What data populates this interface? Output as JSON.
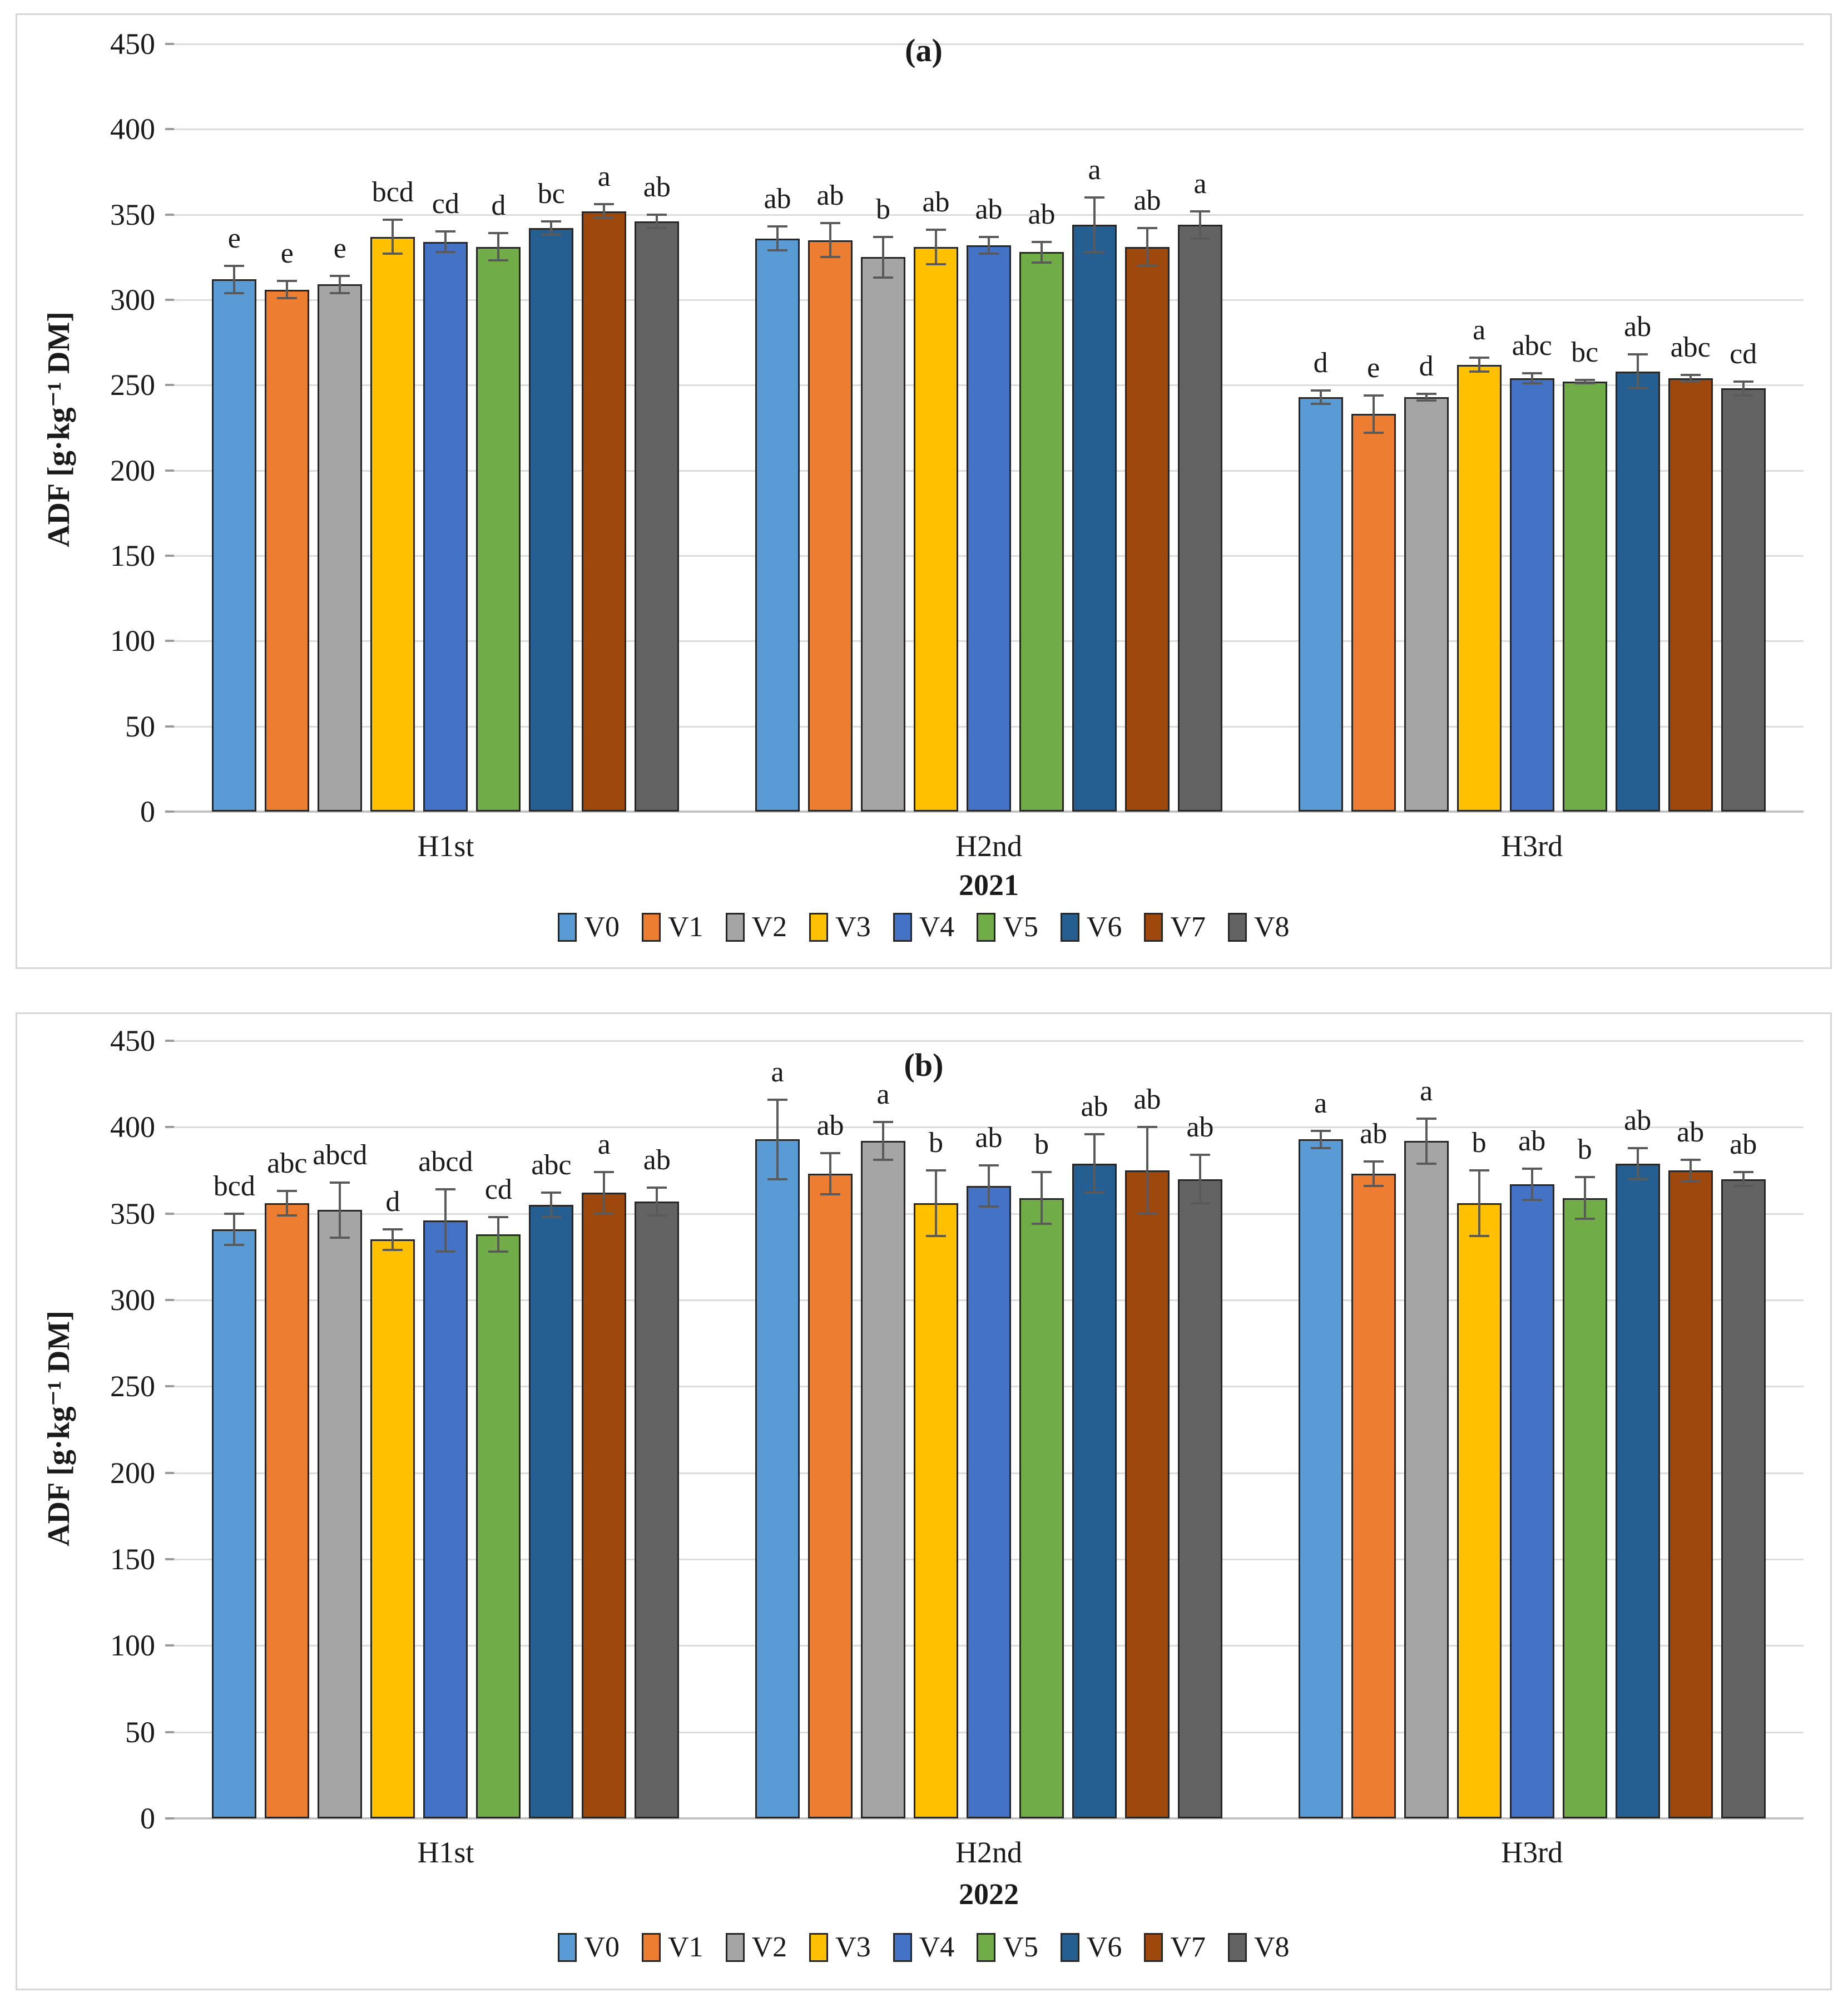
{
  "figure": {
    "panel_count": 2,
    "background": "#ffffff",
    "border_color": "#d6d6d6",
    "bar_border_color": "#262626",
    "error_bar_color": "#5a5a5a",
    "gridline_color": "#dcdcdc"
  },
  "chart_data": [
    {
      "type": "bar",
      "title": "(a)",
      "ylabel": "ADF [g·kg⁻¹ DM]",
      "xlabel": "2021",
      "categories": [
        "H1st",
        "H2nd",
        "H3rd"
      ],
      "ylim": [
        0,
        450
      ],
      "ytick_step": 50,
      "grid": true,
      "legend_position": "bottom",
      "error_bars": true,
      "series": [
        {
          "name": "V0",
          "color": "#5B9BD5",
          "values": [
            312,
            336,
            243
          ],
          "errors": [
            8,
            7,
            4
          ],
          "sig_letters": [
            "e",
            "ab",
            "d"
          ]
        },
        {
          "name": "V1",
          "color": "#ED7D31",
          "values": [
            306,
            335,
            233
          ],
          "errors": [
            5,
            10,
            11
          ],
          "sig_letters": [
            "e",
            "ab",
            "e"
          ]
        },
        {
          "name": "V2",
          "color": "#A5A5A5",
          "values": [
            309,
            325,
            243
          ],
          "errors": [
            5,
            12,
            2
          ],
          "sig_letters": [
            "e",
            "b",
            "d"
          ]
        },
        {
          "name": "V3",
          "color": "#FFC000",
          "values": [
            337,
            331,
            262
          ],
          "errors": [
            10,
            10,
            4
          ],
          "sig_letters": [
            "bcd",
            "ab",
            "a"
          ]
        },
        {
          "name": "V4",
          "color": "#4472C4",
          "values": [
            334,
            332,
            254
          ],
          "errors": [
            6,
            5,
            3
          ],
          "sig_letters": [
            "cd",
            "ab",
            "abc"
          ]
        },
        {
          "name": "V5",
          "color": "#70AD47",
          "values": [
            331,
            328,
            252
          ],
          "errors": [
            8,
            6,
            1
          ],
          "sig_letters": [
            "d",
            "ab",
            "bc"
          ]
        },
        {
          "name": "V6",
          "color": "#255E91",
          "values": [
            342,
            344,
            258
          ],
          "errors": [
            4,
            16,
            10
          ],
          "sig_letters": [
            "bc",
            "a",
            "ab"
          ]
        },
        {
          "name": "V7",
          "color": "#9E480E",
          "values": [
            352,
            331,
            254
          ],
          "errors": [
            4,
            11,
            2
          ],
          "sig_letters": [
            "a",
            "ab",
            "abc"
          ]
        },
        {
          "name": "V8",
          "color": "#636363",
          "values": [
            346,
            344,
            248
          ],
          "errors": [
            4,
            8,
            4
          ],
          "sig_letters": [
            "ab",
            "a",
            "cd"
          ]
        }
      ]
    },
    {
      "type": "bar",
      "title": "(b)",
      "ylabel": "ADF [g·kg⁻¹ DM]",
      "xlabel": "2022",
      "categories": [
        "H1st",
        "H2nd",
        "H3rd"
      ],
      "ylim": [
        0,
        450
      ],
      "ytick_step": 50,
      "grid": true,
      "legend_position": "bottom",
      "error_bars": true,
      "series": [
        {
          "name": "V0",
          "color": "#5B9BD5",
          "values": [
            341,
            393,
            393
          ],
          "errors": [
            9,
            23,
            5
          ],
          "sig_letters": [
            "bcd",
            "a",
            "a"
          ]
        },
        {
          "name": "V1",
          "color": "#ED7D31",
          "values": [
            356,
            373,
            373
          ],
          "errors": [
            7,
            12,
            7
          ],
          "sig_letters": [
            "abc",
            "ab",
            "ab"
          ]
        },
        {
          "name": "V2",
          "color": "#A5A5A5",
          "values": [
            352,
            392,
            392
          ],
          "errors": [
            16,
            11,
            13
          ],
          "sig_letters": [
            "abcd",
            "a",
            "a"
          ]
        },
        {
          "name": "V3",
          "color": "#FFC000",
          "values": [
            335,
            356,
            356
          ],
          "errors": [
            6,
            19,
            19
          ],
          "sig_letters": [
            "d",
            "b",
            "b"
          ]
        },
        {
          "name": "V4",
          "color": "#4472C4",
          "values": [
            346,
            366,
            367
          ],
          "errors": [
            18,
            12,
            9
          ],
          "sig_letters": [
            "abcd",
            "ab",
            "ab"
          ]
        },
        {
          "name": "V5",
          "color": "#70AD47",
          "values": [
            338,
            359,
            359
          ],
          "errors": [
            10,
            15,
            12
          ],
          "sig_letters": [
            "cd",
            "b",
            "b"
          ]
        },
        {
          "name": "V6",
          "color": "#255E91",
          "values": [
            355,
            379,
            379
          ],
          "errors": [
            7,
            17,
            9
          ],
          "sig_letters": [
            "abc",
            "ab",
            "ab"
          ]
        },
        {
          "name": "V7",
          "color": "#9E480E",
          "values": [
            362,
            375,
            375
          ],
          "errors": [
            12,
            25,
            6
          ],
          "sig_letters": [
            "a",
            "ab",
            "ab"
          ]
        },
        {
          "name": "V8",
          "color": "#636363",
          "values": [
            357,
            370,
            370
          ],
          "errors": [
            8,
            14,
            4
          ],
          "sig_letters": [
            "ab",
            "ab",
            "ab"
          ]
        }
      ]
    }
  ]
}
